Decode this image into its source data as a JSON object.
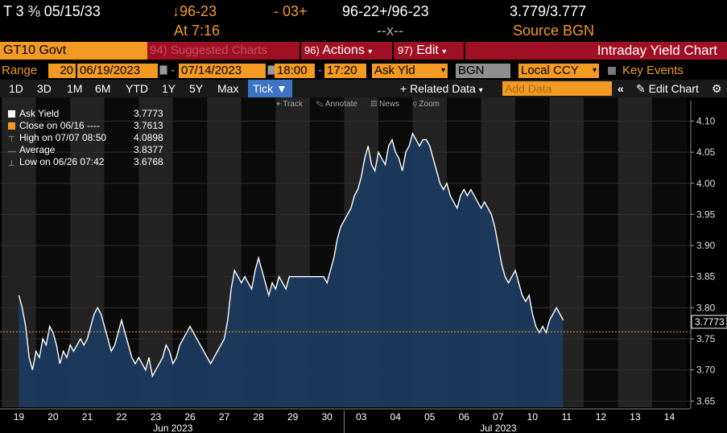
{
  "quote": {
    "ticker": "T 3 ⅜ 05/15/33",
    "price_change": "↓96-23",
    "change": "- 03+",
    "bid_ask": "96-22+/96-23",
    "yields": "3.779/3.777",
    "time": "At 7:16",
    "trade": "--x--",
    "source": "Source BGN"
  },
  "titlebar": {
    "security": "GT10 Govt",
    "suggested": "Suggested Charts",
    "suggested_num": "94)",
    "actions_num": "96)",
    "actions": "Actions",
    "edit_num": "97)",
    "edit": "Edit",
    "title": "Intraday Yield Chart"
  },
  "params": {
    "range_label": "Range",
    "range_num": "20",
    "start_date": "06/19/2023",
    "end_date": "07/14/2023",
    "start_time": "18:00",
    "end_time": "17:20",
    "field": "Ask Yld",
    "source": "BGN",
    "currency": "Local CCY",
    "key_events": "Key Events"
  },
  "tabs": {
    "periods": [
      "1D",
      "3D",
      "1M",
      "6M",
      "YTD",
      "1Y",
      "5Y",
      "Max"
    ],
    "active": "Tick",
    "related": "Related Data",
    "add_data": "Add Data",
    "edit_chart": "Edit Chart"
  },
  "toolbar": [
    "Track",
    "Annotate",
    "News",
    "Zoom"
  ],
  "legend": [
    {
      "label": "Ask Yield",
      "value": "3.7773",
      "color": "#ffffff"
    },
    {
      "label": "Close on 06/16 ----",
      "value": "3.7613",
      "color": "#f39a22"
    },
    {
      "label": "High on 07/07 08:50",
      "value": "4.0898",
      "color": "#888888"
    },
    {
      "label": "Average",
      "value": "3.8377",
      "color": "#888888"
    },
    {
      "label": "Low on 06/26 07:42",
      "value": "3.6768",
      "color": "#888888"
    }
  ],
  "chart_data": {
    "type": "area",
    "series": [
      {
        "name": "Ask Yield",
        "color": "#ffffff",
        "fill": "#1c3a5e"
      }
    ],
    "days": [
      "19",
      "20",
      "21",
      "22",
      "23",
      "26",
      "27",
      "28",
      "29",
      "30",
      "03",
      "04",
      "05",
      "06",
      "07",
      "10",
      "11",
      "12",
      "13",
      "14"
    ],
    "months": [
      "Jun 2023",
      "Jul 2023"
    ],
    "y_ticks": [
      "4.10",
      "4.05",
      "4.00",
      "3.95",
      "3.90",
      "3.85",
      "3.80",
      "3.75",
      "3.70",
      "3.65"
    ],
    "ylim": [
      3.64,
      4.12
    ],
    "close_line": 3.7613,
    "last_value": "3.7773",
    "points": [
      [
        0.0,
        3.82
      ],
      [
        0.1,
        3.8
      ],
      [
        0.2,
        3.77
      ],
      [
        0.3,
        3.72
      ],
      [
        0.4,
        3.7
      ],
      [
        0.5,
        3.73
      ],
      [
        0.6,
        3.72
      ],
      [
        0.7,
        3.75
      ],
      [
        0.8,
        3.74
      ],
      [
        0.9,
        3.77
      ],
      [
        1.0,
        3.76
      ],
      [
        1.1,
        3.74
      ],
      [
        1.2,
        3.71
      ],
      [
        1.3,
        3.73
      ],
      [
        1.4,
        3.72
      ],
      [
        1.5,
        3.74
      ],
      [
        1.6,
        3.73
      ],
      [
        1.7,
        3.74
      ],
      [
        1.8,
        3.75
      ],
      [
        1.9,
        3.74
      ],
      [
        2.0,
        3.75
      ],
      [
        2.1,
        3.77
      ],
      [
        2.2,
        3.79
      ],
      [
        2.3,
        3.8
      ],
      [
        2.4,
        3.79
      ],
      [
        2.5,
        3.77
      ],
      [
        2.6,
        3.75
      ],
      [
        2.7,
        3.73
      ],
      [
        2.8,
        3.74
      ],
      [
        2.9,
        3.76
      ],
      [
        3.0,
        3.78
      ],
      [
        3.1,
        3.76
      ],
      [
        3.2,
        3.74
      ],
      [
        3.3,
        3.72
      ],
      [
        3.4,
        3.71
      ],
      [
        3.5,
        3.72
      ],
      [
        3.6,
        3.71
      ],
      [
        3.7,
        3.7
      ],
      [
        3.8,
        3.72
      ],
      [
        3.9,
        3.69
      ],
      [
        4.0,
        3.7
      ],
      [
        4.1,
        3.71
      ],
      [
        4.2,
        3.72
      ],
      [
        4.3,
        3.74
      ],
      [
        4.4,
        3.73
      ],
      [
        4.5,
        3.71
      ],
      [
        4.6,
        3.72
      ],
      [
        4.7,
        3.74
      ],
      [
        4.8,
        3.75
      ],
      [
        4.9,
        3.76
      ],
      [
        5.0,
        3.77
      ],
      [
        5.1,
        3.76
      ],
      [
        5.2,
        3.75
      ],
      [
        5.3,
        3.74
      ],
      [
        5.4,
        3.73
      ],
      [
        5.5,
        3.72
      ],
      [
        5.6,
        3.71
      ],
      [
        5.7,
        3.72
      ],
      [
        5.8,
        3.73
      ],
      [
        5.9,
        3.74
      ],
      [
        6.0,
        3.75
      ],
      [
        6.1,
        3.78
      ],
      [
        6.2,
        3.83
      ],
      [
        6.3,
        3.86
      ],
      [
        6.4,
        3.85
      ],
      [
        6.5,
        3.84
      ],
      [
        6.6,
        3.85
      ],
      [
        6.7,
        3.84
      ],
      [
        6.8,
        3.83
      ],
      [
        6.9,
        3.86
      ],
      [
        7.0,
        3.88
      ],
      [
        7.1,
        3.86
      ],
      [
        7.2,
        3.84
      ],
      [
        7.3,
        3.82
      ],
      [
        7.4,
        3.84
      ],
      [
        7.5,
        3.83
      ],
      [
        7.6,
        3.85
      ],
      [
        7.7,
        3.84
      ],
      [
        7.8,
        3.83
      ],
      [
        7.9,
        3.85
      ],
      [
        8.0,
        3.85
      ],
      [
        8.1,
        3.85
      ],
      [
        8.2,
        3.85
      ],
      [
        8.3,
        3.85
      ],
      [
        8.4,
        3.85
      ],
      [
        8.5,
        3.85
      ],
      [
        8.6,
        3.85
      ],
      [
        8.7,
        3.85
      ],
      [
        8.8,
        3.85
      ],
      [
        8.9,
        3.85
      ],
      [
        9.0,
        3.84
      ],
      [
        9.1,
        3.86
      ],
      [
        9.2,
        3.88
      ],
      [
        9.3,
        3.91
      ],
      [
        9.4,
        3.93
      ],
      [
        9.5,
        3.94
      ],
      [
        9.6,
        3.95
      ],
      [
        9.7,
        3.96
      ],
      [
        9.8,
        3.98
      ],
      [
        9.9,
        3.99
      ],
      [
        10.0,
        4.01
      ],
      [
        10.1,
        4.04
      ],
      [
        10.2,
        4.06
      ],
      [
        10.3,
        4.03
      ],
      [
        10.4,
        4.02
      ],
      [
        10.5,
        4.05
      ],
      [
        10.6,
        4.04
      ],
      [
        10.7,
        4.03
      ],
      [
        10.8,
        4.06
      ],
      [
        10.9,
        4.07
      ],
      [
        11.0,
        4.05
      ],
      [
        11.1,
        4.04
      ],
      [
        11.2,
        4.02
      ],
      [
        11.3,
        4.05
      ],
      [
        11.4,
        4.06
      ],
      [
        11.5,
        4.08
      ],
      [
        11.6,
        4.07
      ],
      [
        11.7,
        4.06
      ],
      [
        11.8,
        4.07
      ],
      [
        11.9,
        4.07
      ],
      [
        12.0,
        4.06
      ],
      [
        12.1,
        4.04
      ],
      [
        12.2,
        4.02
      ],
      [
        12.3,
        4.0
      ],
      [
        12.4,
        3.99
      ],
      [
        12.5,
        4.0
      ],
      [
        12.6,
        3.98
      ],
      [
        12.7,
        3.97
      ],
      [
        12.8,
        3.96
      ],
      [
        12.9,
        3.98
      ],
      [
        13.0,
        3.99
      ],
      [
        13.1,
        3.98
      ],
      [
        13.2,
        3.99
      ],
      [
        13.3,
        3.98
      ],
      [
        13.4,
        3.97
      ],
      [
        13.5,
        3.96
      ],
      [
        13.6,
        3.97
      ],
      [
        13.7,
        3.96
      ],
      [
        13.8,
        3.95
      ],
      [
        13.9,
        3.93
      ],
      [
        14.0,
        3.9
      ],
      [
        14.1,
        3.87
      ],
      [
        14.2,
        3.85
      ],
      [
        14.3,
        3.84
      ],
      [
        14.4,
        3.85
      ],
      [
        14.5,
        3.86
      ],
      [
        14.6,
        3.84
      ],
      [
        14.7,
        3.82
      ],
      [
        14.8,
        3.81
      ],
      [
        14.9,
        3.82
      ],
      [
        15.0,
        3.79
      ],
      [
        15.1,
        3.77
      ],
      [
        15.2,
        3.76
      ],
      [
        15.3,
        3.77
      ],
      [
        15.4,
        3.76
      ],
      [
        15.5,
        3.78
      ],
      [
        15.6,
        3.79
      ],
      [
        15.7,
        3.8
      ],
      [
        15.8,
        3.79
      ],
      [
        15.9,
        3.78
      ]
    ]
  }
}
